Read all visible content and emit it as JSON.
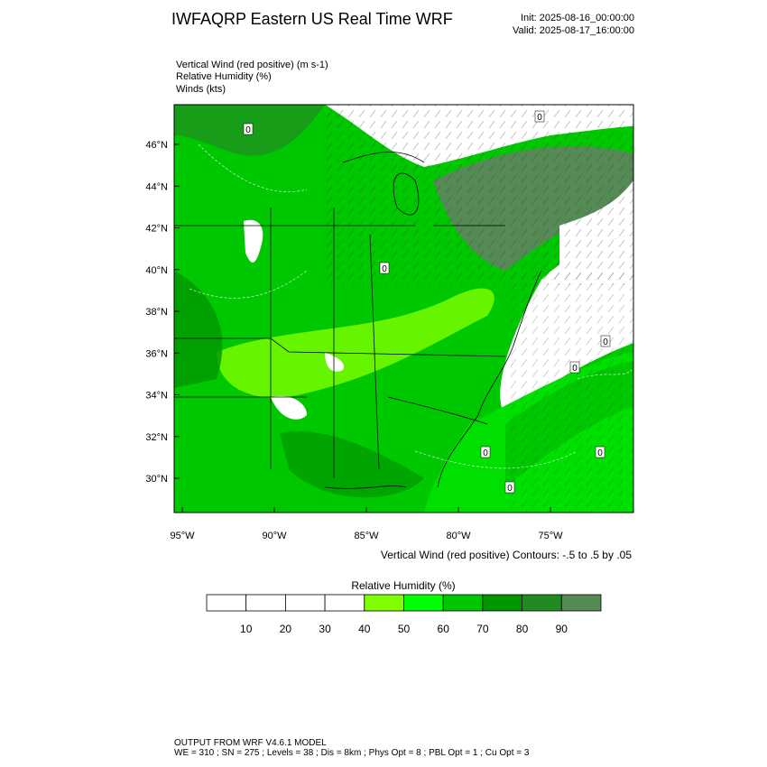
{
  "header": {
    "title": "IWFAQRP Eastern US Real Time WRF",
    "init": "Init: 2025-08-16_00:00:00",
    "valid": "Valid: 2025-08-17_16:00:00"
  },
  "fields": [
    "Vertical Wind (red positive)   (m s-1)",
    "Relative Humidity   (%)",
    "Winds   (kts)"
  ],
  "map": {
    "lat_labels": [
      "46°N",
      "44°N",
      "42°N",
      "40°N",
      "38°N",
      "36°N",
      "34°N",
      "32°N",
      "30°N"
    ],
    "lon_labels": [
      "95°W",
      "90°W",
      "85°W",
      "80°W",
      "75°W"
    ],
    "contour_labels": [
      "0",
      "0",
      "0",
      "0",
      "0",
      "0",
      "0",
      "0"
    ],
    "contour_note": "Vertical Wind (red positive) Contours: -.5 to .5 by .05"
  },
  "colorbar": {
    "title": "Relative Humidity  (%)",
    "labels": [
      10,
      20,
      30,
      40,
      50,
      60,
      70,
      80,
      90
    ],
    "colors": [
      "#ffffff",
      "#ffffff",
      "#ffffff",
      "#ffffff",
      "#80ff00",
      "#00ff00",
      "#00c800",
      "#009600",
      "#218a21",
      "#558a55"
    ]
  },
  "footer": [
    "OUTPUT FROM WRF V4.6.1 MODEL",
    "WE = 310 ; SN = 275 ; Levels = 38 ; Dis = 8km ; Phys Opt = 8 ; PBL Opt = 1 ; Cu Opt = 3"
  ]
}
